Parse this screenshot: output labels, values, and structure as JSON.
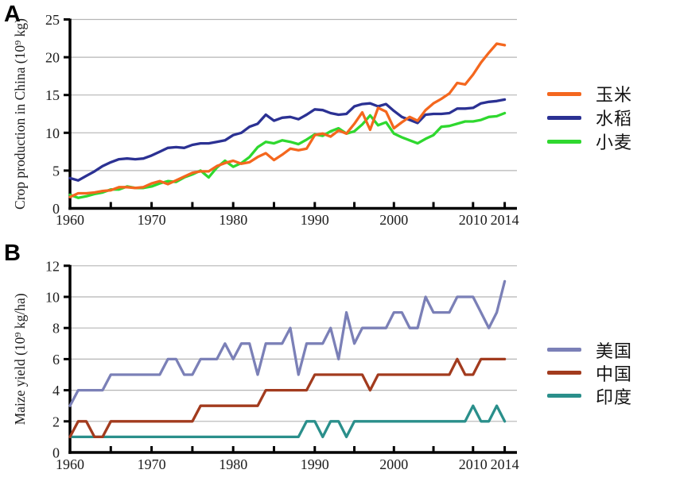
{
  "figure": {
    "panel_a_label": "A",
    "panel_b_label": "B",
    "background": "#ffffff",
    "grid_color": "#b5b5b5",
    "axis_color": "#000000",
    "text_color": "#1c1c1c"
  },
  "chart_data": [
    {
      "type": "line",
      "panel": "A",
      "title": "",
      "xlabel": "",
      "ylabel": "Crop production in China (10⁹ kg)",
      "ylim": [
        0,
        25
      ],
      "yticks": [
        0,
        5,
        10,
        15,
        20,
        25
      ],
      "x0": 1960,
      "x_end": 2014,
      "xtick_years": [
        1960,
        1970,
        1980,
        1990,
        2000,
        2010,
        2014
      ],
      "xtick_labels": [
        "1960",
        "1970",
        "1980",
        "1990",
        "2000",
        "2010",
        "2014"
      ],
      "minor_tick_years": [
        1965,
        1970,
        1975,
        1980,
        1985,
        1990,
        1995,
        2000,
        2005,
        2010,
        2014
      ],
      "grid": "horizontal",
      "legend_position": "right",
      "draw_order": [
        1,
        2,
        0
      ],
      "series": [
        {
          "name": "玉米",
          "color": "#F4671E",
          "values": [
            1.5,
            2.0,
            2.0,
            2.1,
            2.3,
            2.4,
            2.8,
            2.8,
            2.7,
            2.8,
            3.3,
            3.6,
            3.2,
            3.7,
            4.2,
            4.7,
            4.9,
            4.9,
            5.6,
            6.0,
            6.3,
            5.9,
            6.1,
            6.8,
            7.3,
            6.4,
            7.1,
            7.9,
            7.7,
            7.9,
            9.7,
            9.9,
            9.5,
            10.3,
            9.9,
            11.2,
            12.7,
            10.4,
            13.3,
            12.8,
            10.6,
            11.4,
            12.1,
            11.6,
            13.0,
            13.9,
            14.5,
            15.2,
            16.6,
            16.4,
            17.7,
            19.3,
            20.6,
            21.8,
            21.6
          ]
        },
        {
          "name": "水稻",
          "color": "#2B3193",
          "values": [
            4.0,
            3.7,
            4.3,
            4.9,
            5.6,
            6.1,
            6.5,
            6.6,
            6.5,
            6.6,
            7.0,
            7.5,
            8.0,
            8.1,
            8.0,
            8.4,
            8.6,
            8.6,
            8.8,
            9.0,
            9.7,
            10.0,
            10.8,
            11.2,
            12.4,
            11.6,
            12.0,
            12.1,
            11.8,
            12.4,
            13.1,
            13.0,
            12.6,
            12.4,
            12.5,
            13.5,
            13.8,
            13.9,
            13.5,
            13.8,
            12.9,
            12.1,
            11.7,
            11.3,
            12.4,
            12.5,
            12.5,
            12.6,
            13.2,
            13.2,
            13.3,
            13.9,
            14.1,
            14.2,
            14.4
          ]
        },
        {
          "name": "小麦",
          "color": "#2FD82F",
          "values": [
            1.8,
            1.4,
            1.6,
            1.9,
            2.1,
            2.5,
            2.5,
            2.9,
            2.7,
            2.7,
            2.9,
            3.3,
            3.6,
            3.5,
            4.1,
            4.5,
            5.0,
            4.1,
            5.4,
            6.3,
            5.5,
            6.0,
            6.8,
            8.1,
            8.8,
            8.6,
            9.0,
            8.8,
            8.5,
            9.1,
            9.8,
            9.6,
            10.2,
            10.6,
            9.9,
            10.2,
            11.1,
            12.3,
            11.0,
            11.4,
            9.9,
            9.4,
            9.0,
            8.6,
            9.2,
            9.7,
            10.8,
            10.9,
            11.2,
            11.5,
            11.5,
            11.7,
            12.1,
            12.2,
            12.6
          ]
        }
      ]
    },
    {
      "type": "line",
      "panel": "B",
      "title": "",
      "xlabel": "",
      "ylabel": "Maize yield (10⁹ kg/ha)",
      "ylim": [
        0,
        12
      ],
      "yticks": [
        0,
        2,
        4,
        6,
        8,
        10,
        12
      ],
      "x0": 1960,
      "x_end": 2014,
      "xtick_years": [
        1960,
        1970,
        1980,
        1990,
        2000,
        2010,
        2014
      ],
      "xtick_labels": [
        "1960",
        "1970",
        "1980",
        "1990",
        "2000",
        "2010",
        "2014"
      ],
      "minor_tick_years": [
        1965,
        1970,
        1975,
        1980,
        1985,
        1990,
        1995,
        2000,
        2005,
        2010,
        2014
      ],
      "grid": "horizontal",
      "legend_position": "right",
      "draw_order": [
        2,
        0,
        1
      ],
      "series": [
        {
          "name": "美国",
          "color": "#7B80B7",
          "values": [
            3,
            4,
            4,
            4,
            4,
            5,
            5,
            5,
            5,
            5,
            5,
            5,
            6,
            6,
            5,
            5,
            6,
            6,
            6,
            7,
            6,
            7,
            7,
            5,
            7,
            7,
            7,
            8,
            5,
            7,
            7,
            7,
            8,
            6,
            9,
            7,
            8,
            8,
            8,
            8,
            9,
            9,
            8,
            8,
            10,
            9,
            9,
            9,
            10,
            10,
            10,
            9,
            8,
            9,
            11
          ]
        },
        {
          "name": "中国",
          "color": "#A23B1E",
          "values": [
            1,
            2,
            2,
            1,
            1,
            2,
            2,
            2,
            2,
            2,
            2,
            2,
            2,
            2,
            2,
            2,
            3,
            3,
            3,
            3,
            3,
            3,
            3,
            3,
            4,
            4,
            4,
            4,
            4,
            4,
            5,
            5,
            5,
            5,
            5,
            5,
            5,
            4,
            5,
            5,
            5,
            5,
            5,
            5,
            5,
            5,
            5,
            5,
            6,
            5,
            5,
            6,
            6,
            6,
            6
          ]
        },
        {
          "name": "印度",
          "color": "#2A8F8B",
          "values": [
            1,
            1,
            1,
            1,
            1,
            1,
            1,
            1,
            1,
            1,
            1,
            1,
            1,
            1,
            1,
            1,
            1,
            1,
            1,
            1,
            1,
            1,
            1,
            1,
            1,
            1,
            1,
            1,
            1,
            2,
            2,
            1,
            2,
            2,
            1,
            2,
            2,
            2,
            2,
            2,
            2,
            2,
            2,
            2,
            2,
            2,
            2,
            2,
            2,
            2,
            3,
            2,
            2,
            3,
            2
          ]
        }
      ]
    }
  ]
}
